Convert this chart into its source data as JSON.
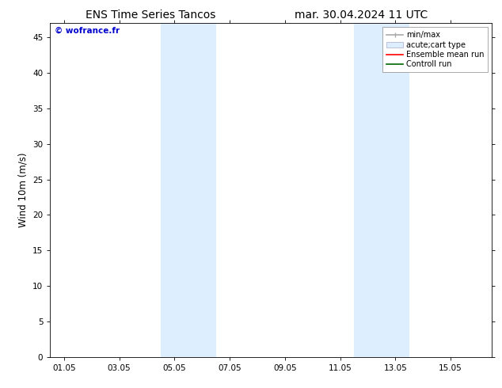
{
  "title": "ENS Time Series Tancos",
  "title_right": "mar. 30.04.2024 11 UTC",
  "ylabel": "Wind 10m (m/s)",
  "ylim": [
    0,
    47
  ],
  "yticks": [
    0,
    5,
    10,
    15,
    20,
    25,
    30,
    35,
    40,
    45
  ],
  "xtick_labels": [
    "01.05",
    "03.05",
    "05.05",
    "07.05",
    "09.05",
    "11.05",
    "13.05",
    "15.05"
  ],
  "xtick_positions": [
    0,
    2,
    4,
    6,
    8,
    10,
    12,
    14
  ],
  "xlim": [
    -0.5,
    15.5
  ],
  "shaded_bands": [
    {
      "x_start": 3.5,
      "x_end": 5.5
    },
    {
      "x_start": 10.5,
      "x_end": 12.5
    }
  ],
  "shaded_color": "#ddeeff",
  "background_color": "#ffffff",
  "watermark_text": "© wofrance.fr",
  "watermark_color": "#0000cc",
  "title_fontsize": 10,
  "tick_fontsize": 7.5,
  "label_fontsize": 8.5,
  "watermark_fontsize": 7.5,
  "legend_fontsize": 7
}
